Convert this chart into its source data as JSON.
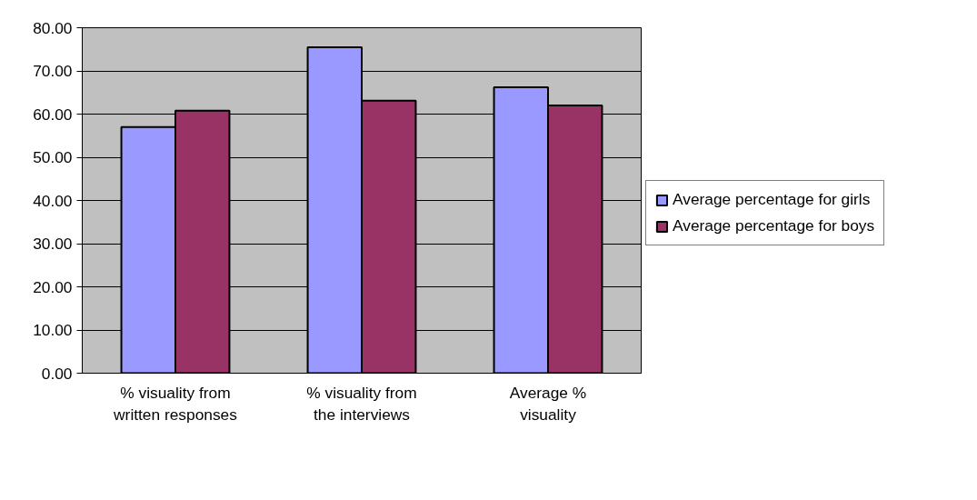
{
  "chart_data": {
    "type": "bar",
    "categories": [
      "% visuality from written responses",
      "% visuality from the interviews",
      "Average % visuality"
    ],
    "series": [
      {
        "name": "Average percentage for girls",
        "color": "#9999ff",
        "values": [
          57.0,
          75.5,
          66.2
        ]
      },
      {
        "name": "Average percentage for boys",
        "color": "#993366",
        "values": [
          60.8,
          63.1,
          62.0
        ]
      }
    ],
    "ylim": [
      0,
      80
    ],
    "yticks": [
      {
        "value": 0,
        "label": "0.00"
      },
      {
        "value": 10,
        "label": "10.00"
      },
      {
        "value": 20,
        "label": "20.00"
      },
      {
        "value": 30,
        "label": "30.00"
      },
      {
        "value": 40,
        "label": "40.00"
      },
      {
        "value": 50,
        "label": "50.00"
      },
      {
        "value": 60,
        "label": "60.00"
      },
      {
        "value": 70,
        "label": "70.00"
      },
      {
        "value": 80,
        "label": "80.00"
      }
    ],
    "grid": "y",
    "legend": "right"
  }
}
